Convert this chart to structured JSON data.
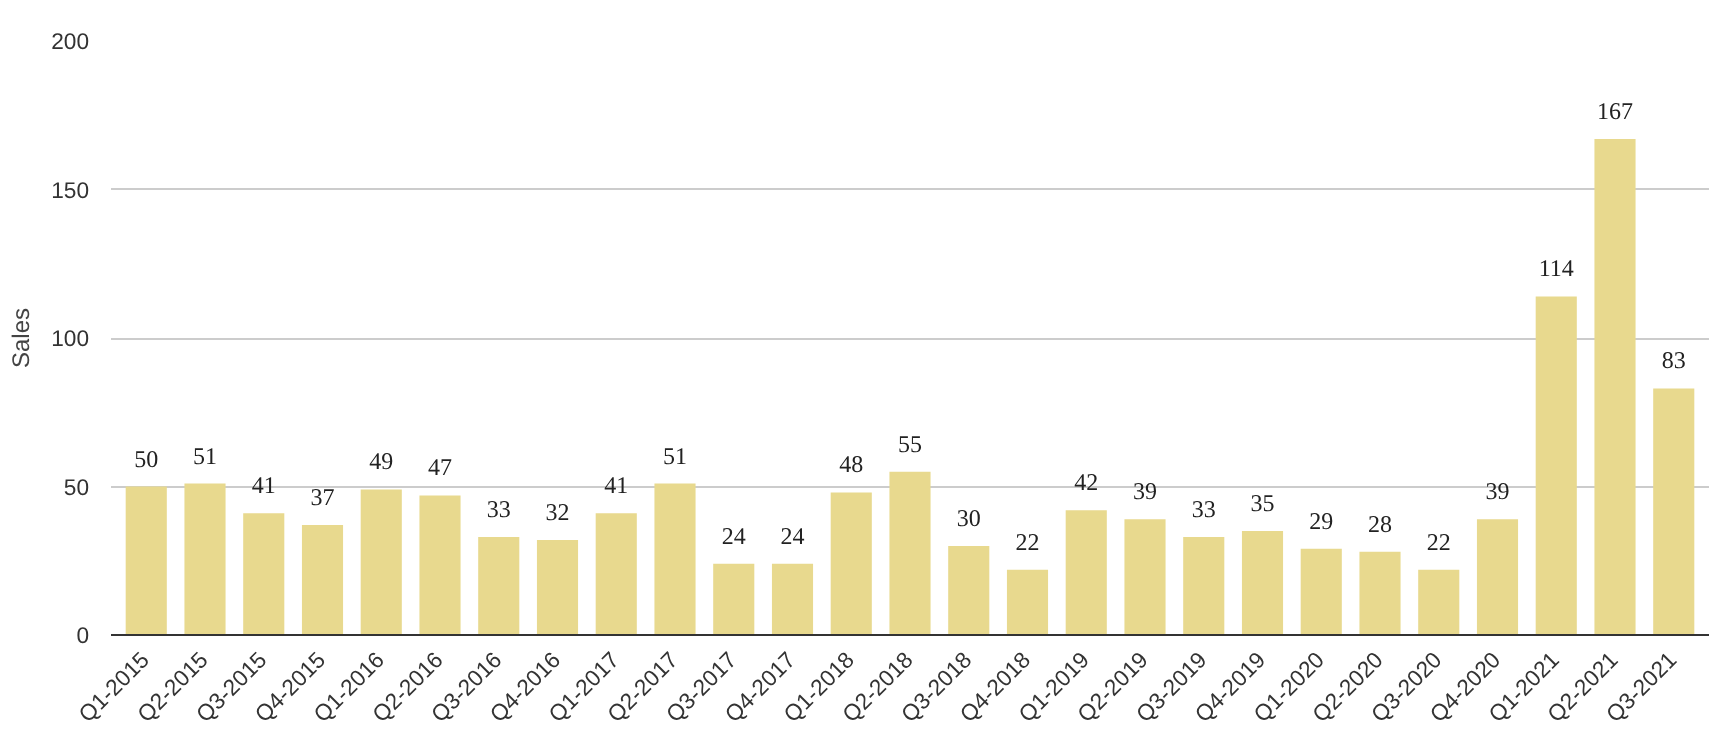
{
  "chart_data": {
    "type": "bar",
    "ylabel": "Sales",
    "categories": [
      "Q1-2015",
      "Q2-2015",
      "Q3-2015",
      "Q4-2015",
      "Q1-2016",
      "Q2-2016",
      "Q3-2016",
      "Q4-2016",
      "Q1-2017",
      "Q2-2017",
      "Q3-2017",
      "Q4-2017",
      "Q1-2018",
      "Q2-2018",
      "Q3-2018",
      "Q4-2018",
      "Q1-2019",
      "Q2-2019",
      "Q3-2019",
      "Q4-2019",
      "Q1-2020",
      "Q2-2020",
      "Q3-2020",
      "Q4-2020",
      "Q1-2021",
      "Q2-2021",
      "Q3-2021"
    ],
    "values": [
      50,
      51,
      41,
      37,
      49,
      47,
      33,
      32,
      41,
      51,
      24,
      24,
      48,
      55,
      30,
      22,
      42,
      39,
      33,
      35,
      29,
      28,
      22,
      39,
      114,
      167,
      83
    ],
    "color": "#e8d98e",
    "ylim": [
      0,
      200
    ],
    "yticks": [
      0,
      50,
      100,
      150,
      200
    ],
    "grid": "y",
    "data_labels": true
  }
}
